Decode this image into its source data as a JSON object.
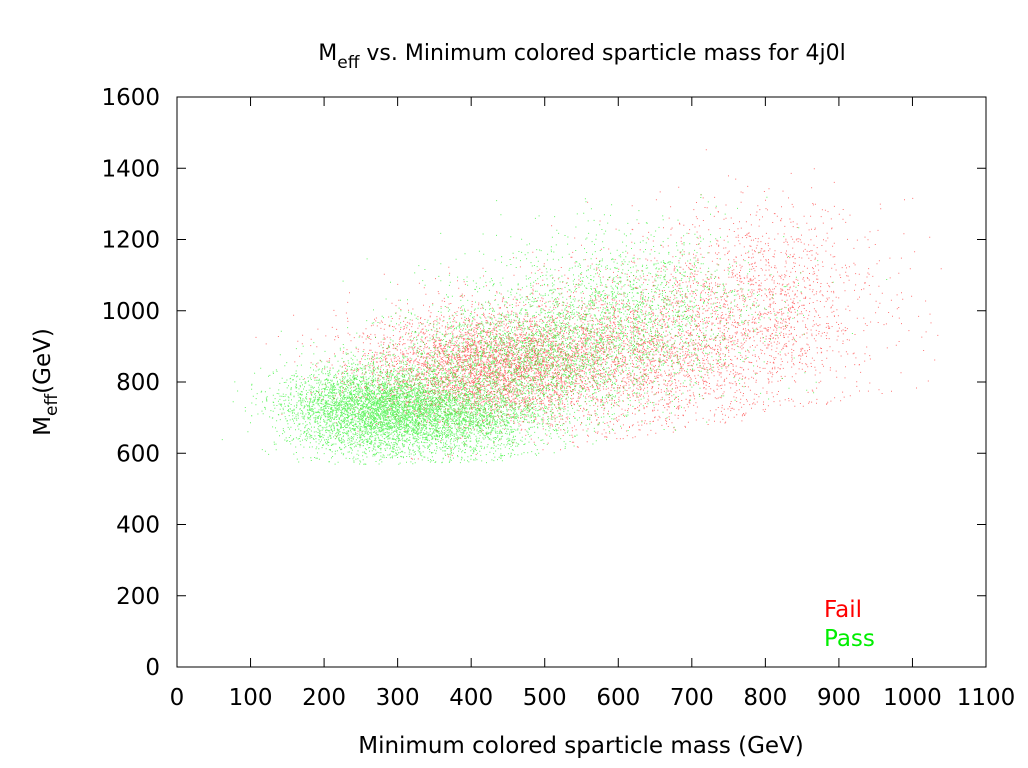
{
  "chart_data": {
    "type": "scatter",
    "title": {
      "main": "M",
      "sub": "eff",
      "rest": " vs. Minimum colored sparticle mass for 4j0l"
    },
    "xlabel": "Minimum colored sparticle mass (GeV)",
    "ylabel": {
      "main": "M",
      "sub": "eff",
      "rest": "(GeV)"
    },
    "xlim": [
      0,
      1100
    ],
    "ylim": [
      0,
      1600
    ],
    "x_ticks": [
      "0",
      "100",
      "200",
      "300",
      "400",
      "500",
      "600",
      "700",
      "800",
      "900",
      "1000",
      "1100"
    ],
    "y_ticks": [
      "0",
      "200",
      "400",
      "600",
      "800",
      "1000",
      "1200",
      "1400",
      "1600"
    ],
    "grid": false,
    "legend_position": "bottom-right",
    "series": [
      {
        "name": "Fail",
        "color": "#ff0000",
        "n_points": 9000,
        "clusters": [
          {
            "x_center": 420,
            "x_spread": 90,
            "y_center": 840,
            "y_spread": 75,
            "weight": 0.45
          },
          {
            "x_center": 620,
            "x_spread": 110,
            "y_center": 890,
            "y_spread": 110,
            "weight": 0.4
          },
          {
            "x_center": 800,
            "x_spread": 80,
            "y_center": 1040,
            "y_spread": 130,
            "weight": 0.15
          }
        ]
      },
      {
        "name": "Pass",
        "color": "#00ee00",
        "n_points": 26000,
        "clusters": [
          {
            "x_center": 260,
            "x_spread": 60,
            "y_center": 730,
            "y_spread": 60,
            "weight": 0.55
          },
          {
            "x_center": 360,
            "x_spread": 70,
            "y_center": 700,
            "y_spread": 55,
            "weight": 0.2
          },
          {
            "x_center": 470,
            "x_spread": 90,
            "y_center": 860,
            "y_spread": 90,
            "weight": 0.18
          },
          {
            "x_center": 620,
            "x_spread": 90,
            "y_center": 1000,
            "y_spread": 110,
            "weight": 0.07
          }
        ]
      }
    ]
  }
}
